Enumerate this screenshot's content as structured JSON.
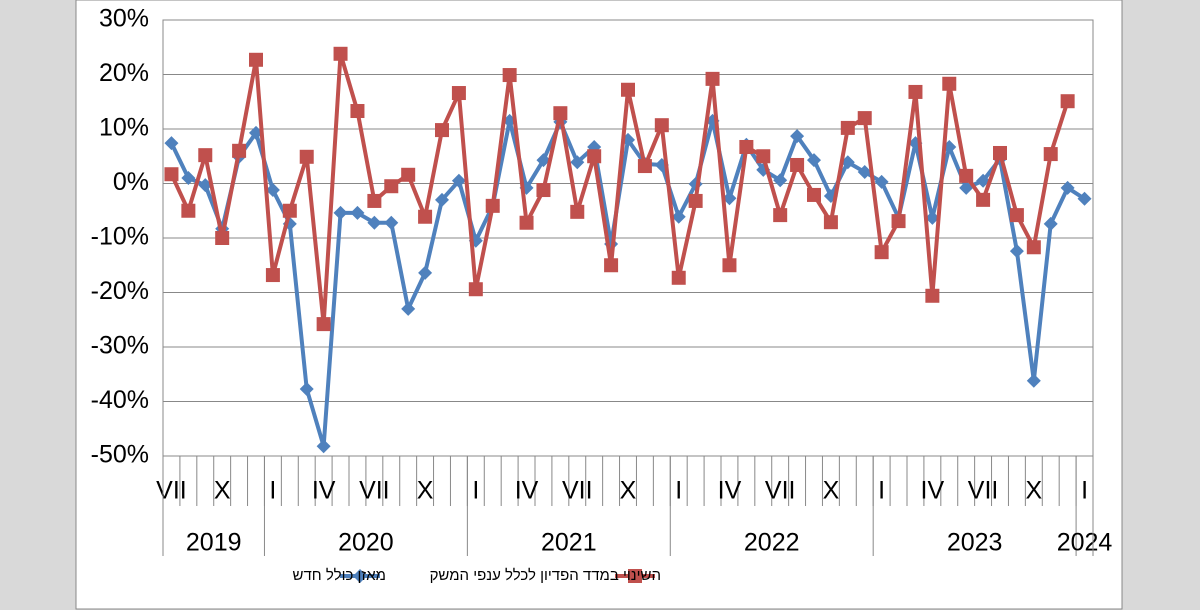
{
  "chart_data": {
    "type": "line",
    "categories": [
      "VII",
      null,
      null,
      "X",
      null,
      null,
      "I",
      null,
      null,
      "IV",
      null,
      null,
      "VII",
      null,
      null,
      "X",
      null,
      null,
      "I",
      null,
      null,
      "IV",
      null,
      null,
      "VII",
      null,
      null,
      "X",
      null,
      null,
      "I",
      null,
      null,
      "IV",
      null,
      null,
      "VII",
      null,
      null,
      "X",
      null,
      null,
      "I",
      null,
      null,
      "IV",
      null,
      null,
      "VII",
      null,
      null,
      "X",
      null,
      null,
      "I"
    ],
    "years": [
      "2019",
      "2020",
      "2021",
      "2022",
      "2023",
      "2024"
    ],
    "series": [
      {
        "name": "מאזן כולל חדש",
        "color": "#4f81bd",
        "marker": "diamond",
        "values": [
          7.4,
          1.0,
          -0.3,
          -8.3,
          4.9,
          9.3,
          -1.2,
          -7.4,
          -37.7,
          -48.2,
          -5.4,
          -5.4,
          -7.2,
          -7.2,
          -23,
          -16.4,
          -3.0,
          0.5,
          -10.5,
          -4.1,
          11.5,
          -0.8,
          4.3,
          11.3,
          3.9,
          6.7,
          -11.1,
          8.0,
          3.6,
          3.4,
          -6.1,
          -0.1,
          11.5,
          -2.7,
          7.1,
          2.5,
          0.6,
          8.7,
          4.3,
          -2.3,
          3.9,
          2.1,
          0.3,
          -6.3,
          7.4,
          -6.3,
          6.7,
          -0.8,
          0.5,
          4.5,
          -12.4,
          -36.2,
          -7.4,
          -0.8,
          -2.8
        ]
      },
      {
        "name": "השינוי במדד הפדיון לכלל ענפי המשק",
        "color": "#c0504d",
        "marker": "square",
        "values": [
          1.7,
          -5.0,
          5.2,
          -10.0,
          6.0,
          22.7,
          -16.8,
          -5.0,
          4.9,
          -25.8,
          23.8,
          13.3,
          -3.2,
          -0.5,
          1.6,
          -6.1,
          9.8,
          16.6,
          -19.4,
          -4.1,
          19.9,
          -7.2,
          -1.2,
          12.9,
          -5.2,
          5.0,
          -15.0,
          17.2,
          3.2,
          10.7,
          -17.3,
          -3.2,
          19.2,
          -15.0,
          6.7,
          5.0,
          -5.8,
          3.4,
          -2.1,
          -7.1,
          10.2,
          12.0,
          -12.6,
          -6.9,
          16.8,
          -20.6,
          18.3,
          1.4,
          -3.0,
          5.6,
          -5.8,
          -11.7,
          5.4,
          15.1,
          null
        ]
      }
    ],
    "ylim": [
      -50,
      30
    ],
    "yticks": [
      {
        "value": -50,
        "label": "-50%"
      },
      {
        "value": -40,
        "label": "-40%"
      },
      {
        "value": -30,
        "label": "-30%"
      },
      {
        "value": -20,
        "label": "-20%"
      },
      {
        "value": -10,
        "label": "-10%"
      },
      {
        "value": 0,
        "label": "0%"
      },
      {
        "value": 10,
        "label": "10%"
      },
      {
        "value": 20,
        "label": "20%"
      },
      {
        "value": 30,
        "label": "30%"
      }
    ],
    "grid": true,
    "legend": "bottom"
  }
}
